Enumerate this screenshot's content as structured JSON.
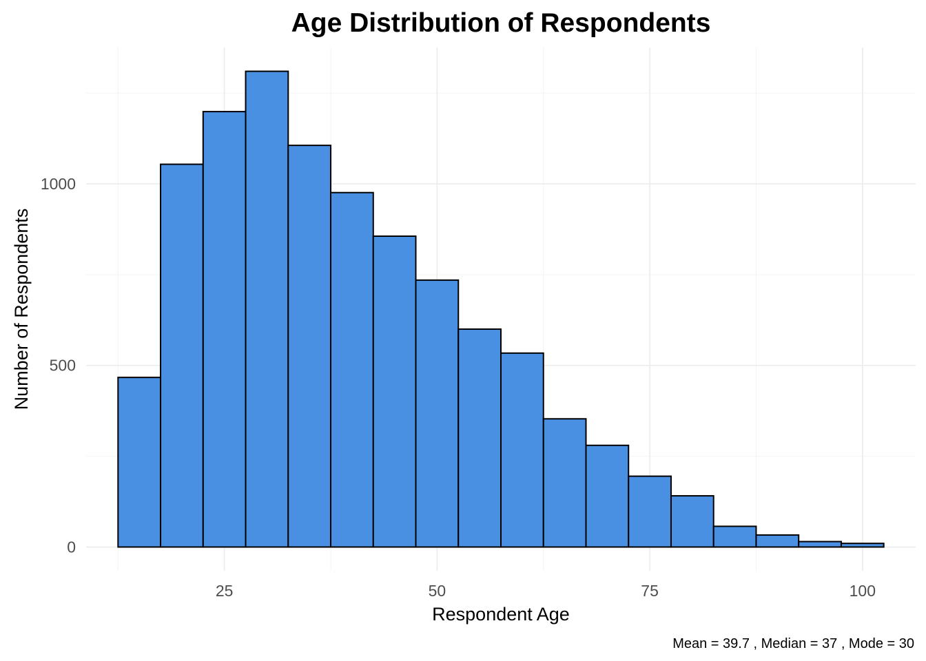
{
  "chart_data": {
    "type": "bar",
    "title": "Age Distribution of Respondents",
    "xlabel": "Respondent Age",
    "ylabel": "Number of Respondents",
    "caption": "Mean = 39.7 , Median = 37 , Mode = 30",
    "bin_width": 5,
    "bins": [
      {
        "x0": 12.5,
        "x1": 17.5,
        "count": 467
      },
      {
        "x0": 17.5,
        "x1": 22.5,
        "count": 1054
      },
      {
        "x0": 22.5,
        "x1": 27.5,
        "count": 1199
      },
      {
        "x0": 27.5,
        "x1": 32.5,
        "count": 1310
      },
      {
        "x0": 32.5,
        "x1": 37.5,
        "count": 1106
      },
      {
        "x0": 37.5,
        "x1": 42.5,
        "count": 976
      },
      {
        "x0": 42.5,
        "x1": 47.5,
        "count": 856
      },
      {
        "x0": 47.5,
        "x1": 52.5,
        "count": 735
      },
      {
        "x0": 52.5,
        "x1": 57.5,
        "count": 600
      },
      {
        "x0": 57.5,
        "x1": 62.5,
        "count": 534
      },
      {
        "x0": 62.5,
        "x1": 67.5,
        "count": 353
      },
      {
        "x0": 67.5,
        "x1": 72.5,
        "count": 280
      },
      {
        "x0": 72.5,
        "x1": 77.5,
        "count": 195
      },
      {
        "x0": 77.5,
        "x1": 82.5,
        "count": 141
      },
      {
        "x0": 82.5,
        "x1": 87.5,
        "count": 57
      },
      {
        "x0": 87.5,
        "x1": 92.5,
        "count": 33
      },
      {
        "x0": 92.5,
        "x1": 97.5,
        "count": 15
      },
      {
        "x0": 97.5,
        "x1": 102.5,
        "count": 10
      }
    ],
    "xlim": [
      8.75,
      106.25
    ],
    "ylim": [
      -65.5,
      1375.5
    ],
    "x_ticks": [
      25,
      50,
      75,
      100
    ],
    "y_ticks": [
      0,
      500,
      1000
    ],
    "x_tick_labels": [
      "25",
      "50",
      "75",
      "100"
    ],
    "y_tick_labels": [
      "0",
      "500",
      "1000"
    ],
    "grid": true,
    "legend": "none",
    "colors": {
      "bar_fill": "#4A90E2",
      "bar_outline": "#000000",
      "grid": "#EBEBEB",
      "background": "#FFFFFF"
    }
  }
}
